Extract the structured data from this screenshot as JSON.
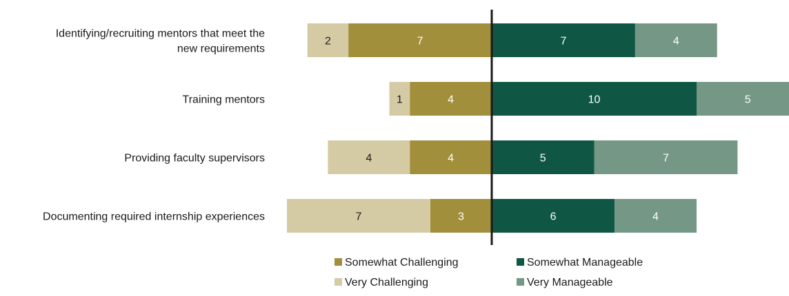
{
  "chart_data": {
    "type": "bar",
    "orientation": "horizontal",
    "stacked": "diverging",
    "title": "",
    "xlabel": "",
    "ylabel": "",
    "categories": [
      [
        "Identifying/recruiting mentors that meet the",
        "new requirements"
      ],
      [
        "Training mentors"
      ],
      [
        "Providing faculty supervisors"
      ],
      [
        "Documenting required internship experiences"
      ]
    ],
    "series": [
      {
        "name": "Very Challenging",
        "side": "negative",
        "color": "#d4cba5",
        "text_color": "#1a1a1a",
        "values": [
          2,
          1,
          4,
          7
        ]
      },
      {
        "name": "Somewhat Challenging",
        "side": "negative",
        "color": "#a28f3b",
        "text_color": "#ffffff",
        "values": [
          7,
          4,
          4,
          3
        ]
      },
      {
        "name": "Somewhat Manageable",
        "side": "positive",
        "color": "#0f5744",
        "text_color": "#ffffff",
        "values": [
          7,
          10,
          5,
          6
        ]
      },
      {
        "name": "Very Manageable",
        "side": "positive",
        "color": "#759786",
        "text_color": "#ffffff",
        "values": [
          4,
          5,
          7,
          4
        ]
      }
    ],
    "legend": {
      "position": "bottom",
      "items": [
        {
          "name": "Somewhat Challenging",
          "color": "#a28f3b"
        },
        {
          "name": "Somewhat Manageable",
          "color": "#0f5744"
        },
        {
          "name": "Very Challenging",
          "color": "#d4cba5"
        },
        {
          "name": "Very Manageable",
          "color": "#759786"
        }
      ]
    },
    "grid": false,
    "center_line": true
  }
}
